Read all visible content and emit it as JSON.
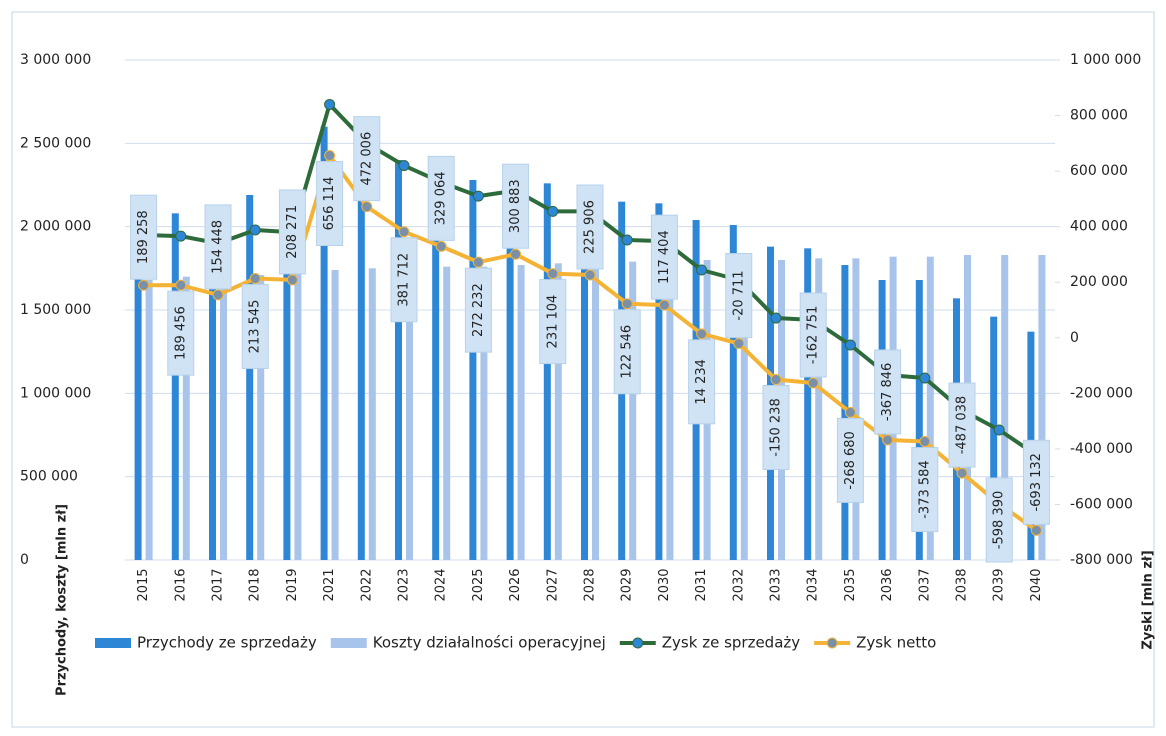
{
  "chart_data": {
    "type": "bar_line",
    "y_label": "Przychody, koszty [mln zł]",
    "y2_label": "Zyski [mln zł]",
    "categories": [
      "2015",
      "2016",
      "2017",
      "2018",
      "2019",
      "2021",
      "2022",
      "2023",
      "2024",
      "2025",
      "2026",
      "2027",
      "2028",
      "2029",
      "2030",
      "2031",
      "2032",
      "2033",
      "2034",
      "2035",
      "2036",
      "2037",
      "2038",
      "2039",
      "2040"
    ],
    "series": [
      {
        "name": "Przychody ze sprzedaży",
        "type": "bar",
        "color": "#2e86d6",
        "values": [
          2050000,
          2080000,
          2100000,
          2190000,
          2200000,
          2600000,
          2450000,
          2400000,
          2320000,
          2280000,
          2310000,
          2260000,
          2240000,
          2150000,
          2140000,
          2040000,
          2010000,
          1880000,
          1870000,
          1770000,
          1680000,
          1680000,
          1570000,
          1460000,
          1370000
        ]
      },
      {
        "name": "Koszty działalności operacyjnej",
        "type": "bar",
        "color": "#a9c4ea",
        "values": [
          1680000,
          1700000,
          1700000,
          1710000,
          1720000,
          1740000,
          1750000,
          1750000,
          1760000,
          1760000,
          1770000,
          1780000,
          1780000,
          1790000,
          1790000,
          1800000,
          1800000,
          1800000,
          1810000,
          1810000,
          1820000,
          1820000,
          1830000,
          1830000,
          1830000
        ]
      },
      {
        "name": "Zysk ze sprzedaży",
        "type": "line",
        "axis": "y2",
        "color": "#2e6b3a",
        "marker": "#2e86d6",
        "values": [
          370000,
          366000,
          340000,
          388000,
          380000,
          840000,
          700000,
          620000,
          560000,
          510000,
          530000,
          455000,
          455000,
          352000,
          348000,
          244000,
          208000,
          71000,
          64000,
          -26000,
          -134000,
          -145000,
          -260000,
          -332000,
          -422000
        ]
      },
      {
        "name": "Zysk netto",
        "type": "line",
        "axis": "y2",
        "color": "#f5b335",
        "marker": "#7a8fa8",
        "values": [
          189258,
          189456,
          154448,
          213545,
          208271,
          656114,
          472006,
          381712,
          329064,
          272232,
          300883,
          231104,
          225906,
          122546,
          117404,
          14234,
          -20711,
          -150238,
          -162751,
          -268680,
          -367846,
          -373584,
          -487038,
          -598390,
          -693132
        ],
        "value_labels": [
          "189 258",
          "189 456",
          "154 448",
          "213 545",
          "208 271",
          "656 114",
          "472 006",
          "381 712",
          "329 064",
          "272 232",
          "300 883",
          "231 104",
          "225 906",
          "122 546",
          "117 404",
          "14 234",
          "-20 711",
          "-150 238",
          "-162 751",
          "-268 680",
          "-367 846",
          "-373 584",
          "-487 038",
          "-598 390",
          "-693 132"
        ]
      }
    ],
    "ylim": [
      0,
      3000000
    ],
    "yticks": [
      {
        "value": 0,
        "label": "0"
      },
      {
        "value": 500000,
        "label": "500 000"
      },
      {
        "value": 1000000,
        "label": "1 000 000"
      },
      {
        "value": 1500000,
        "label": "1 500 000"
      },
      {
        "value": 2000000,
        "label": "2 000 000"
      },
      {
        "value": 2500000,
        "label": "2 500 000"
      },
      {
        "value": 3000000,
        "label": "3 000 000"
      }
    ],
    "y2lim": [
      -800000,
      1000000
    ],
    "y2ticks": [
      {
        "value": -800000,
        "label": "-800 000"
      },
      {
        "value": -600000,
        "label": "-600 000"
      },
      {
        "value": -400000,
        "label": "-400 000"
      },
      {
        "value": -200000,
        "label": "-200 000"
      },
      0,
      {
        "value": 200000,
        "label": "200 000"
      },
      {
        "value": 400000,
        "label": "400 000"
      },
      {
        "value": 600000,
        "label": "600 000"
      },
      {
        "value": 800000,
        "label": "800 000"
      },
      {
        "value": 1000000,
        "label": "1 000 000"
      }
    ],
    "grid": true
  }
}
